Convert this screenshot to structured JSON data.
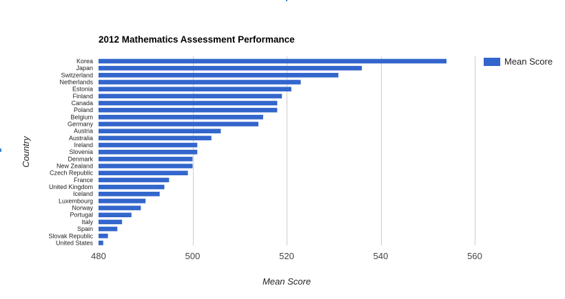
{
  "chart_data": {
    "type": "bar",
    "orientation": "horizontal",
    "title": "2012 Mathematics Assessment Performance",
    "xlabel": "Mean Score",
    "ylabel": "Country",
    "xlim": [
      480,
      560
    ],
    "xticks": [
      "480",
      "500",
      "520",
      "540",
      "560"
    ],
    "grid": true,
    "legend_position": "right",
    "categories": [
      "Korea",
      "Japan",
      "Switzerland",
      "Netherlands",
      "Estonia",
      "Finland",
      "Canada",
      "Poland",
      "Belgium",
      "Germany",
      "Austria",
      "Australia",
      "Ireland",
      "Slovenia",
      "Denmark",
      "New Zealand",
      "Czech Republic",
      "France",
      "United Kingdom",
      "Iceland",
      "Luxembourg",
      "Norway",
      "Portugal",
      "Italy",
      "Spain",
      "Slovak Republic",
      "United States"
    ],
    "series": [
      {
        "name": "Mean Score",
        "color": "#3366cc",
        "values": [
          554,
          536,
          531,
          523,
          521,
          519,
          518,
          518,
          515,
          514,
          506,
          504,
          501,
          501,
          500,
          500,
          499,
          495,
          494,
          493,
          490,
          489,
          487,
          485,
          484,
          482,
          481
        ]
      }
    ]
  },
  "colors": {
    "bar": "#3366cc",
    "grid": "#cccccc",
    "accent_mark": "#3a86d4"
  }
}
